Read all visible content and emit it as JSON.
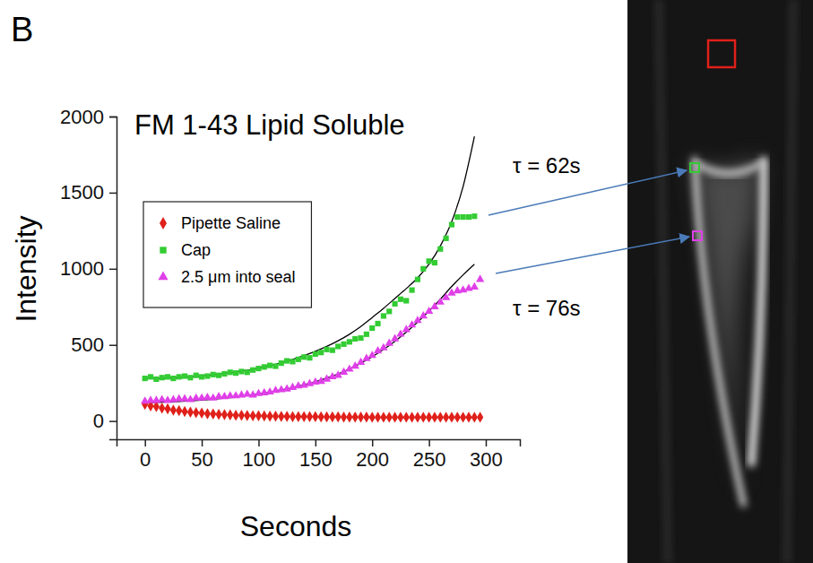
{
  "chart_data": {
    "type": "scatter",
    "panel_label": "B",
    "title": "FM 1-43 Lipid Soluble",
    "x_label": "Seconds",
    "y_label": "Intensity",
    "xlim": [
      -25,
      330
    ],
    "xticks": [
      0,
      50,
      100,
      150,
      200,
      250,
      300
    ],
    "ylim": [
      -120,
      2000
    ],
    "yticks": [
      0,
      500,
      1000,
      1500,
      2000
    ],
    "grid": false,
    "legend": "upper left",
    "x": [
      0,
      5,
      10,
      15,
      20,
      25,
      30,
      35,
      40,
      45,
      50,
      55,
      60,
      65,
      70,
      75,
      80,
      85,
      90,
      95,
      100,
      105,
      110,
      115,
      120,
      125,
      130,
      135,
      140,
      145,
      150,
      155,
      160,
      165,
      170,
      175,
      180,
      185,
      190,
      195,
      200,
      205,
      210,
      215,
      220,
      225,
      230,
      235,
      240,
      245,
      250,
      255,
      260,
      265,
      270,
      275,
      280,
      285,
      290,
      295
    ],
    "series": [
      {
        "name": "Pipette Saline",
        "color": "#e0201a",
        "marker": "diamond",
        "values": [
          110,
          100,
          95,
          85,
          80,
          72,
          68,
          62,
          58,
          55,
          52,
          48,
          46,
          44,
          42,
          40,
          38,
          37,
          36,
          35,
          34,
          33,
          32,
          31,
          30,
          30,
          29,
          29,
          28,
          28,
          28,
          27,
          27,
          27,
          27,
          26,
          26,
          26,
          26,
          26,
          25,
          25,
          25,
          25,
          25,
          25,
          25,
          25,
          25,
          25,
          25,
          25,
          25,
          25,
          25,
          25,
          25,
          25,
          25,
          25
        ]
      },
      {
        "name": "Cap",
        "color": "#33cc33",
        "marker": "square",
        "values": [
          280,
          290,
          275,
          285,
          290,
          280,
          290,
          295,
          285,
          300,
          290,
          295,
          305,
          300,
          310,
          320,
          315,
          325,
          320,
          335,
          345,
          355,
          365,
          360,
          380,
          395,
          390,
          405,
          420,
          415,
          440,
          450,
          470,
          465,
          490,
          505,
          520,
          540,
          545,
          570,
          610,
          640,
          690,
          720,
          770,
          800,
          790,
          860,
          930,
          1000,
          1050,
          1040,
          1130,
          1200,
          1290,
          1340,
          1340,
          1340,
          1345,
          null
        ],
        "fit": {
          "color": "#000000",
          "x": [
            0,
            10,
            20,
            30,
            40,
            50,
            60,
            70,
            80,
            90,
            100,
            110,
            120,
            130,
            140,
            150,
            160,
            170,
            180,
            190,
            200,
            210,
            220,
            230,
            240,
            250,
            260,
            270,
            280,
            290
          ],
          "values": [
            280,
            280,
            282,
            285,
            290,
            296,
            303,
            312,
            322,
            334,
            348,
            364,
            383,
            405,
            430,
            458,
            490,
            527,
            570,
            620,
            680,
            740,
            805,
            870,
            940,
            1030,
            1150,
            1310,
            1540,
            1870
          ]
        }
      },
      {
        "name": "2.5 μm into seal",
        "color": "#e040e8",
        "marker": "triangle",
        "values": [
          130,
          135,
          135,
          140,
          135,
          140,
          145,
          145,
          140,
          150,
          150,
          155,
          150,
          160,
          160,
          165,
          165,
          170,
          175,
          170,
          180,
          185,
          190,
          200,
          205,
          210,
          220,
          230,
          235,
          245,
          255,
          260,
          275,
          290,
          300,
          320,
          340,
          360,
          385,
          410,
          430,
          460,
          480,
          510,
          540,
          570,
          600,
          630,
          660,
          690,
          720,
          750,
          780,
          810,
          840,
          855,
          860,
          870,
          880,
          930
        ],
        "fit": {
          "color": "#000000",
          "x": [
            0,
            10,
            20,
            30,
            40,
            50,
            60,
            70,
            80,
            90,
            100,
            110,
            120,
            130,
            140,
            150,
            160,
            170,
            180,
            190,
            200,
            210,
            220,
            230,
            240,
            250,
            260,
            270,
            280,
            290
          ],
          "values": [
            120,
            122,
            125,
            128,
            132,
            137,
            143,
            150,
            158,
            168,
            178,
            190,
            204,
            220,
            238,
            258,
            282,
            310,
            342,
            380,
            422,
            470,
            524,
            584,
            650,
            722,
            800,
            884,
            960,
            1030
          ]
        }
      }
    ],
    "annotations": [
      {
        "text": "τ = 62s"
      },
      {
        "text": "τ = 76s"
      }
    ]
  }
}
